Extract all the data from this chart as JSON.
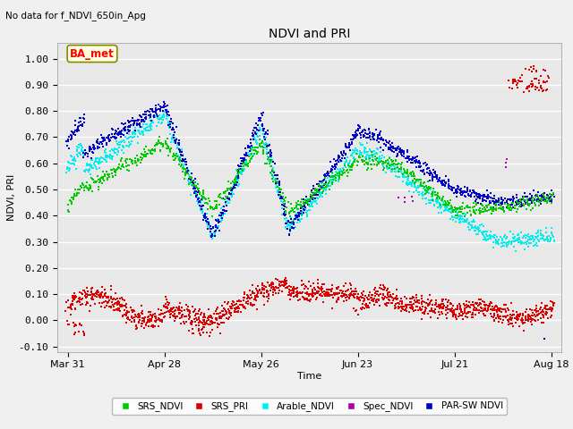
{
  "title": "NDVI and PRI",
  "subtitle": "No data for f_NDVI_650in_Apg",
  "ylabel": "NDVI, PRI",
  "xlabel": "Time",
  "ylim": [
    -0.12,
    1.06
  ],
  "yticks": [
    -0.1,
    0.0,
    0.1,
    0.2,
    0.3,
    0.4,
    0.5,
    0.6,
    0.7,
    0.8,
    0.9,
    1.0
  ],
  "xtick_labels": [
    "Mar 31",
    "Apr 28",
    "May 26",
    "Jun 23",
    "Jul 21",
    "Aug 18"
  ],
  "xtick_positions": [
    0,
    28,
    56,
    84,
    112,
    140
  ],
  "annotation_box": "BA_met",
  "colors": {
    "srs_ndvi": "#00cc00",
    "srs_pri": "#dd0000",
    "arable_ndvi": "#00eeee",
    "spec_ndvi": "#aa00aa",
    "parsw_ndvi": "#0000cc"
  },
  "background_color": "#e8e8e8",
  "grid_color": "#ffffff",
  "fig_color": "#f0f0f0",
  "seed": 42
}
